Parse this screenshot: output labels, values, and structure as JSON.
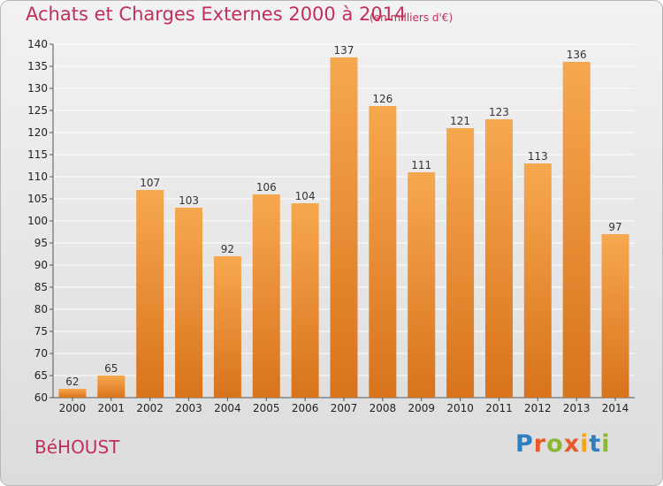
{
  "colors": {
    "accent": "#c0305a",
    "bar_light": "#f7a84f",
    "bar_dark": "#d8731c",
    "grid": "#ffffff"
  },
  "header": {
    "title": "Achats et Charges Externes 2000 à 2014",
    "unit": "(en milliers d'€)"
  },
  "footer": {
    "commune": "BéHOUST",
    "brand": "Proxiti"
  },
  "chart_data": {
    "type": "bar",
    "title": "Achats et Charges Externes 2000 à 2014",
    "subtitle": "(en milliers d'€)",
    "xlabel": "",
    "ylabel": "",
    "categories": [
      "2000",
      "2001",
      "2002",
      "2003",
      "2004",
      "2005",
      "2006",
      "2007",
      "2008",
      "2009",
      "2010",
      "2011",
      "2012",
      "2013",
      "2014"
    ],
    "values": [
      62,
      65,
      107,
      103,
      92,
      106,
      104,
      137,
      126,
      111,
      121,
      123,
      113,
      136,
      97
    ],
    "data_labels": [
      "62",
      "65",
      "107",
      "103",
      "92",
      "106",
      "104",
      "137",
      "126",
      "111",
      "121",
      "123",
      "113",
      "136",
      "97"
    ],
    "ylim": [
      60,
      140
    ],
    "yticks": [
      60,
      65,
      70,
      75,
      80,
      85,
      90,
      95,
      100,
      105,
      110,
      115,
      120,
      125,
      130,
      135,
      140
    ],
    "grid": true,
    "legend": "none"
  }
}
